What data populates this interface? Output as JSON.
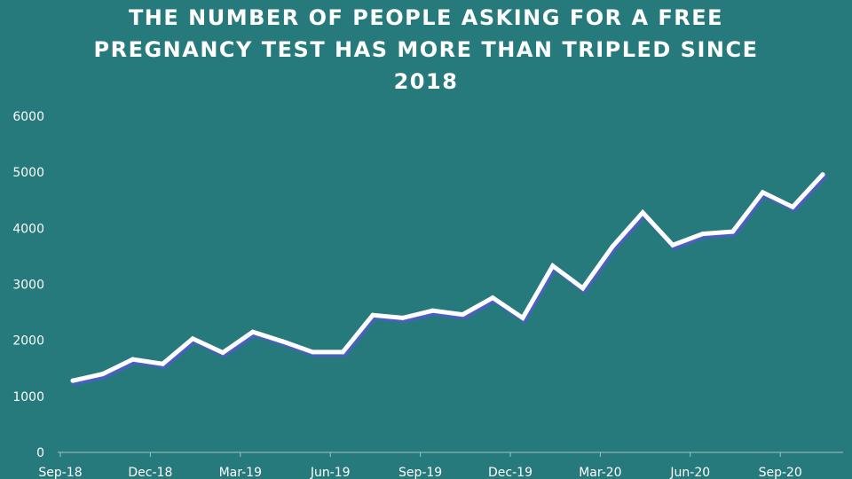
{
  "chart_data": {
    "type": "line",
    "title": "THE NUMBER OF PEOPLE ASKING FOR A FREE PREGNANCY TEST HAS MORE THAN TRIPLED SINCE 2018",
    "xlabel": "",
    "ylabel": "",
    "ylim": [
      0,
      6000
    ],
    "y_ticks": [
      "0",
      "1000",
      "2000",
      "3000",
      "4000",
      "5000",
      "6000"
    ],
    "x_tick_labels": [
      "Sep-18",
      "Dec-18",
      "Mar-19",
      "Jun-19",
      "Sep-19",
      "Dec-19",
      "Mar-20",
      "Jun-20",
      "Sep-20"
    ],
    "grid": false,
    "legend": "none",
    "line_color": "#ffffff",
    "shadow_color": "#4a5fbf",
    "categories": [
      "Sep-18",
      "Oct-18",
      "Nov-18",
      "Dec-18",
      "Jan-19",
      "Feb-19",
      "Mar-19",
      "Apr-19",
      "May-19",
      "Jun-19",
      "Jul-19",
      "Aug-19",
      "Sep-19",
      "Oct-19",
      "Nov-19",
      "Dec-19",
      "Jan-20",
      "Feb-20",
      "Mar-20",
      "Apr-20",
      "May-20",
      "Jun-20",
      "Jul-20",
      "Aug-20",
      "Sep-20",
      "Oct-20"
    ],
    "series": [
      {
        "values": [
          1280,
          1400,
          1660,
          1580,
          2030,
          1780,
          2150,
          1980,
          1790,
          1790,
          2450,
          2400,
          2530,
          2460,
          2760,
          2400,
          3330,
          2930,
          3680,
          4280,
          3700,
          3900,
          3940,
          4640,
          4380,
          4960
        ]
      }
    ]
  }
}
